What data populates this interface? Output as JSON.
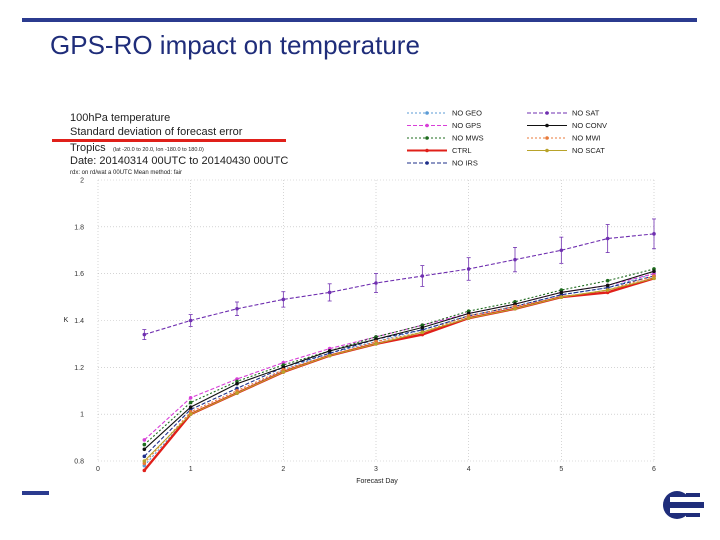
{
  "slide": {
    "title": "GPS-RO impact on temperature",
    "accent_color": "#2b3b8f",
    "title_color": "#1f2d7a",
    "logo_icon": "ecmwf-logo-icon"
  },
  "chart_data": {
    "type": "line",
    "header": {
      "line1": "100hPa temperature",
      "line2": "Standard deviation of forecast error",
      "line3_main": "Tropics",
      "line3_sub": "(lat -20.0 to 20.0, lon -180.0 to 180.0)",
      "line4": "Date: 20140314 00UTC to 20140430 00UTC",
      "line5": "rdx: on rd/wat a 00UTC   Mean method: fair"
    },
    "xlabel": "Forecast Day",
    "ylabel": "K",
    "xlim": [
      0,
      6
    ],
    "ylim": [
      0.8,
      2.0
    ],
    "x_ticks": [
      0,
      1,
      2,
      3,
      4,
      5,
      6
    ],
    "y_ticks": [
      0.8,
      1,
      1.2,
      1.4,
      1.6,
      1.8,
      2
    ],
    "y_tick_labels": [
      "0.8",
      "1",
      "1.2",
      "1.4",
      "1.6",
      "1.8",
      "2"
    ],
    "grid": true,
    "x": [
      0.5,
      1,
      1.5,
      2,
      2.5,
      3,
      3.5,
      4,
      4.5,
      5,
      5.5,
      6
    ],
    "series": [
      {
        "name": "NO GEO",
        "color": "#5b9bd5",
        "dash": "2,2",
        "marker": "circle",
        "values": [
          0.78,
          1.0,
          1.09,
          1.19,
          1.26,
          1.31,
          1.36,
          1.42,
          1.46,
          1.51,
          1.54,
          1.6
        ]
      },
      {
        "name": "NO GPS",
        "color": "#d83fd8",
        "dash": "4,2",
        "marker": "triangle",
        "values": [
          0.89,
          1.07,
          1.15,
          1.22,
          1.28,
          1.33,
          1.38,
          1.43,
          1.47,
          1.52,
          1.55,
          1.6
        ]
      },
      {
        "name": "NO MWS",
        "color": "#1d6b1d",
        "dash": "2,2",
        "marker": "square",
        "values": [
          0.87,
          1.05,
          1.14,
          1.21,
          1.27,
          1.33,
          1.38,
          1.44,
          1.48,
          1.53,
          1.57,
          1.62
        ]
      },
      {
        "name": "CTRL",
        "color": "#e0201a",
        "dash": "",
        "marker": "circle",
        "values": [
          0.76,
          1.0,
          1.09,
          1.18,
          1.25,
          1.3,
          1.34,
          1.41,
          1.45,
          1.5,
          1.52,
          1.58
        ]
      },
      {
        "name": "NO IRS",
        "color": "#1e2f8a",
        "dash": "4,2",
        "marker": "circle",
        "values": [
          0.82,
          1.02,
          1.11,
          1.2,
          1.26,
          1.32,
          1.36,
          1.42,
          1.46,
          1.51,
          1.54,
          1.59
        ]
      },
      {
        "name": "NO SAT",
        "color": "#6f2fb0",
        "dash": "4,2",
        "marker": "plus",
        "values": [
          1.34,
          1.4,
          1.45,
          1.49,
          1.52,
          1.56,
          1.59,
          1.62,
          1.66,
          1.7,
          1.75,
          1.77
        ]
      },
      {
        "name": "NO CONV",
        "color": "#111111",
        "dash": "",
        "marker": "circle",
        "values": [
          0.85,
          1.03,
          1.13,
          1.2,
          1.27,
          1.32,
          1.37,
          1.43,
          1.47,
          1.52,
          1.55,
          1.61
        ]
      },
      {
        "name": "NO MWI",
        "color": "#e87a3a",
        "dash": "2,2",
        "marker": "circle",
        "values": [
          0.79,
          1.01,
          1.1,
          1.19,
          1.25,
          1.31,
          1.35,
          1.42,
          1.46,
          1.5,
          1.53,
          1.59
        ]
      },
      {
        "name": "NO SCAT",
        "color": "#b8a32a",
        "dash": "",
        "marker": "cross",
        "values": [
          0.8,
          1.0,
          1.09,
          1.18,
          1.25,
          1.3,
          1.35,
          1.41,
          1.45,
          1.5,
          1.53,
          1.58
        ]
      }
    ],
    "legend_position": "top-right",
    "error_bar_series": "NO SAT"
  }
}
